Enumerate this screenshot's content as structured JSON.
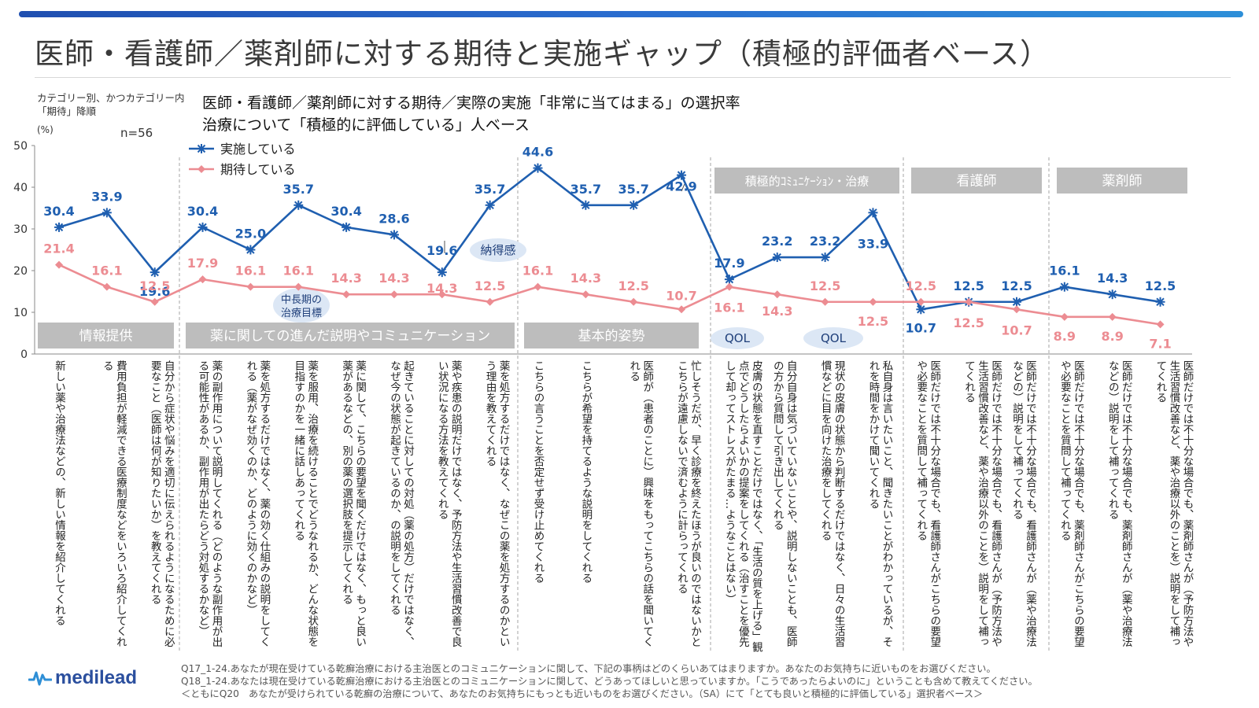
{
  "title": "医師・看護師／薬剤師に対する期待と実施ギャップ（積極的評価者ベース）",
  "note": [
    "カテゴリー別、かつカテゴリー内",
    "「期待」降順"
  ],
  "unit": "(%)",
  "n_label": "n=56",
  "subtitle": [
    "医師・看護師／薬剤師に対する期待／実際の実施「非常に当てはまる」の選択率",
    "治療について「積極的に評価している」人ベース"
  ],
  "category_labels": [
    {
      "label": "情報提供"
    },
    {
      "label": "薬に関しての進んだ説明やコミュニケーション"
    },
    {
      "label": "基本的姿勢"
    },
    {
      "label": "積極的ｺﾐｭﾆｹｰｼｮﾝ・治療"
    },
    {
      "label": "看護師"
    },
    {
      "label": "薬剤師"
    }
  ],
  "bubbles": [
    {
      "label": "中長期の\n治療目標"
    },
    {
      "label": "納得感"
    },
    {
      "label": "QOL"
    },
    {
      "label": "QOL"
    }
  ],
  "chart_data": {
    "type": "line",
    "ylim": [
      0,
      50
    ],
    "yticks": [
      0,
      10,
      20,
      30,
      40,
      50
    ],
    "ylabel": "(%)",
    "legend": "top-left",
    "series": [
      {
        "name": "実施している",
        "color": "#1f5fb0",
        "marker": "asterisk",
        "values": [
          30.4,
          33.9,
          19.6,
          30.4,
          25.0,
          35.7,
          30.4,
          28.6,
          19.6,
          35.7,
          44.6,
          35.7,
          35.7,
          42.9,
          17.9,
          23.2,
          23.2,
          33.9,
          10.7,
          12.5,
          12.5,
          16.1,
          14.3,
          12.5
        ],
        "labels": [
          "30.4",
          "33.9",
          "19.6",
          "30.4",
          "25.0",
          "35.7",
          "30.4",
          "28.6",
          "19.6",
          "35.7",
          "44.6",
          "35.7",
          "35.7",
          "42.9",
          "17.9",
          "23.2",
          "23.2",
          "33.9",
          "10.7",
          "12.5",
          "12.5",
          "16.1",
          "14.3",
          "12.5"
        ]
      },
      {
        "name": "期待している",
        "color": "#ec8c92",
        "marker": "diamond",
        "values": [
          21.4,
          16.1,
          12.5,
          17.9,
          16.1,
          16.1,
          14.3,
          14.3,
          14.3,
          12.5,
          16.1,
          14.3,
          12.5,
          10.7,
          16.1,
          14.3,
          12.5,
          12.5,
          12.5,
          12.5,
          10.7,
          8.9,
          8.9,
          7.1
        ],
        "labels": [
          "21.4",
          "16.1",
          "12.5",
          "17.9",
          "16.1",
          "16.1",
          "14.3",
          "14.3",
          "14.3",
          "12.5",
          "16.1",
          "14.3",
          "12.5",
          "10.7",
          "16.1",
          "14.3",
          "12.5",
          "12.5",
          "12.5",
          "12.5",
          "10.7",
          "8.9",
          "8.9",
          "7.1"
        ]
      }
    ],
    "categories": [
      "新しい薬や治療法などの、新しい情報を紹介してくれる",
      "費用負担が軽減できる医療制度などをいろいろ紹介してくれる",
      "自分から症状や悩みを適切に伝えられるようになるために必要なこと（医師は何が知りたいか）を教えてくれる",
      "薬の副作用について説明してくれる（どのような副作用が出る可能性があるか、副作用が出たらどう対処するかなど）",
      "薬を処方するだけではなく、薬の効く仕組みの説明をしてくれる（薬がなぜ効くのか、どのように効くのかなど）",
      "薬を服用、治療を続けることでどうなれるか、どんな状態を目指すのかを一緒に話しあってくれる",
      "薬に関して、こちらの要望を聞くだけではなく、もっと良い薬があるなどの、別の薬の選択肢を提示してくれる",
      "起きていることに対しての対処（薬の処方）だけではなく、なぜ今の状態が起きているのか、の説明をしてくれる",
      "薬や疾患の説明だけではなく、予防方法や生活習慣改善で良い状況になる方法を教えてくれる",
      "薬を処方するだけではなく、なぜこの薬を処方するのかという理由を教えてくれる",
      "こちらの言うことを否定せず受け止めてくれる",
      "こちらが希望を持てるような説明をしてくれる",
      "医師が（患者のことに）興味をもってこちらの話を聞いてくれる",
      "忙しそうだが、早く診療を終えたほうが良いのではないかとこちらが遠慮しないで済むように計らってくれる",
      "皮膚の状態を直すことだけではなく、「生活の質を上げる」観点でどうしたらよいかの提案をしてくれる（治すことを優先して却ってストレスがたまる…ようなことはない）",
      "自分自身は気づいていないことや、説明しないことも、医師の方から質問して引き出してくれる",
      "現状の皮膚の状態から判断するだけではなく、日々の生活習慣などに目を向けた治療をしてくれる",
      "私自身は言いたいこと、聞きたいことがわかっているが、それを時間をかけて聞いてくれる",
      "医師だけでは不十分な場合でも、看護師さんがこちらの要望や必要なことを質問して補ってくれる",
      "医師だけでは不十分な場合でも、看護師さんが（予防方法や生活習慣改善など、薬や治療以外のことを）説明をして補ってくれる",
      "医師だけでは不十分な場合でも、看護師さんが（薬や治療法などの）説明をして補ってくれる",
      "医師だけでは不十分な場合でも、薬剤師さんがこちらの要望や必要なことを質問して補ってくれる",
      "医師だけでは不十分な場合でも、薬剤師さんが（薬や治療法などの）説明をして補ってくれる",
      "医師だけでは不十分な場合でも、薬剤師さんが（予防方法や生活習慣改善など、薬や治療以外のことを）説明をして補ってくれる"
    ]
  },
  "footer": [
    "Q17_1-24.あなたが現在受けている乾癬治療における主治医とのコミュニケーションに関して、下記の事柄はどのくらいあてはまりますか。あなたのお気持ちに近いものをお選びください。",
    "Q18_1-24.あなたは現在受けている乾癬治療における主治医とのコミュニケーションに関して、どうあってほしいと思っていますか。「こうであったらよいのに」ということも含めて教えてください。",
    "＜ともにQ20　あなたが受けられている乾癬の治療について、あなたのお気持ちにもっとも近いものをお選びください。（SA）にて「とても良いと積極的に評価している」選択者ベース＞"
  ],
  "logo": "medilead",
  "colors": {
    "implemented": "#1f5fb0",
    "expected": "#ec8c92",
    "category_bg": "#bdbdbd",
    "bubble_bg": "#dce7f5",
    "accent": "#2b4f9e"
  }
}
